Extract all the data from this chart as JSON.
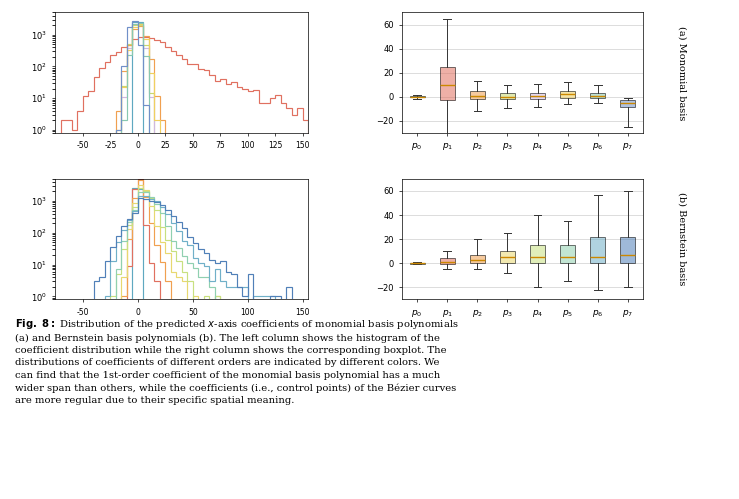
{
  "colors_mono": [
    "#5fa8c0",
    "#e07060",
    "#f0a050",
    "#c8d870",
    "#d0b8e0",
    "#f0d060",
    "#88c8b0",
    "#7090c8"
  ],
  "colors_bern": [
    "#5fa8c0",
    "#e07060",
    "#f0a050",
    "#e8d870",
    "#c8e080",
    "#90d0b0",
    "#70b0c8",
    "#5080b8"
  ],
  "box_labels": [
    "$p_0$",
    "$p_1$",
    "$p_2$",
    "$p_3$",
    "$p_4$",
    "$p_5$",
    "$p_6$",
    "$p_7$"
  ],
  "mono_box_data": {
    "whislo": [
      -1.5,
      -32,
      -12,
      -9,
      -8,
      -6,
      -5,
      -25
    ],
    "q1": [
      -0.5,
      -3,
      -2,
      -2,
      -2,
      -1,
      -1,
      -8
    ],
    "med": [
      0,
      10,
      1,
      0,
      1,
      2,
      1,
      -5
    ],
    "q3": [
      0.5,
      25,
      5,
      3,
      3,
      5,
      3,
      -3
    ],
    "whishi": [
      1.5,
      65,
      13,
      10,
      11,
      12,
      10,
      -1
    ]
  },
  "bern_box_data": {
    "whislo": [
      -1,
      -5,
      -5,
      -8,
      -20,
      -15,
      -22,
      -20
    ],
    "q1": [
      -0.3,
      -0.5,
      0,
      0,
      0,
      0,
      0,
      0
    ],
    "med": [
      0,
      1,
      3,
      5,
      5,
      5,
      5,
      7
    ],
    "q3": [
      0.3,
      4,
      7,
      10,
      15,
      15,
      22,
      22
    ],
    "whishi": [
      1,
      10,
      20,
      25,
      40,
      35,
      57,
      60
    ]
  },
  "label_a": "(a) Monomial basis",
  "label_b": "(b) Bernstein basis"
}
